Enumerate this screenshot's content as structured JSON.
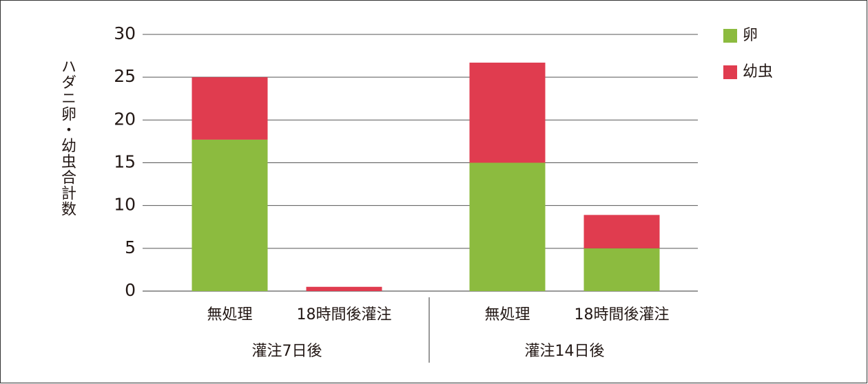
{
  "chart_data": {
    "type": "stacked-bar",
    "y_label": "ハダニ卵・幼虫合計数",
    "categories": [
      "無処理",
      "18時間後灌注",
      "無処理",
      "18時間後灌注"
    ],
    "groups": [
      "灌注7日後",
      "灌注14日後"
    ],
    "series": [
      {
        "name": "卵",
        "color": "#8cbb3f",
        "values": [
          17.7,
          0,
          15,
          5
        ]
      },
      {
        "name": "幼虫",
        "color": "#e03c4f",
        "values": [
          7.3,
          0.5,
          11.7,
          3.9
        ]
      }
    ],
    "ylim": [
      0,
      30
    ],
    "yticks": [
      0,
      5,
      10,
      15,
      20,
      25,
      30
    ],
    "grid": true
  }
}
